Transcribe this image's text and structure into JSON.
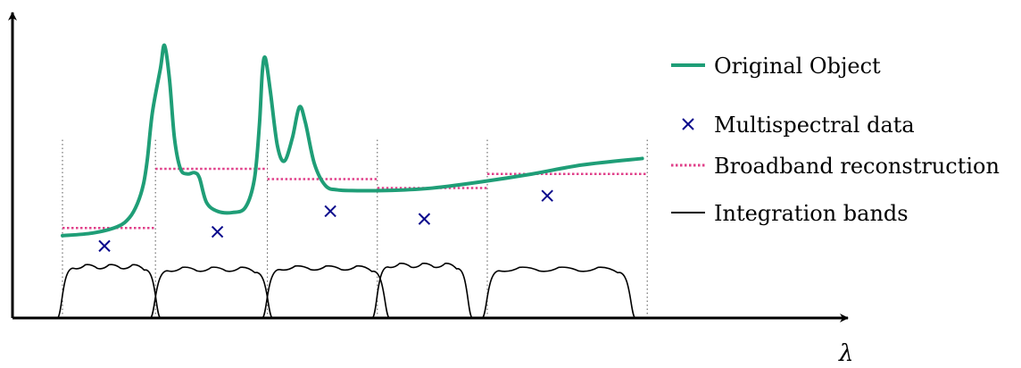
{
  "chart_data": {
    "type": "line",
    "title": "",
    "xlabel": "λ",
    "ylabel": "",
    "xlim": [
      0,
      100
    ],
    "ylim": [
      0,
      100
    ],
    "grid": false,
    "legend_position": "right",
    "colors": {
      "original": "#1f9e77",
      "data": "#0a0a8c",
      "broadband": "#e0408a",
      "bands": "#000000"
    },
    "legend": {
      "original": "Original Object",
      "data": "Multispectral data",
      "broadband": "Broadband reconstruction",
      "bands": "Integration bands"
    },
    "original_object": [
      [
        5,
        32
      ],
      [
        8,
        33
      ],
      [
        10.5,
        35.5
      ],
      [
        11.7,
        39
      ],
      [
        12.5,
        44.5
      ],
      [
        13.1,
        52
      ],
      [
        13.5,
        62
      ],
      [
        14.0,
        80
      ],
      [
        14.8,
        97
      ],
      [
        15.2,
        106
      ],
      [
        15.7,
        93
      ],
      [
        16.2,
        70
      ],
      [
        16.8,
        58
      ],
      [
        17.5,
        56
      ],
      [
        18.2,
        56.5
      ],
      [
        18.7,
        54.5
      ],
      [
        19.4,
        45
      ],
      [
        20.5,
        41.5
      ],
      [
        22.0,
        41
      ],
      [
        23.3,
        43
      ],
      [
        24.2,
        54
      ],
      [
        24.7,
        75
      ],
      [
        25.0,
        96
      ],
      [
        25.3,
        101
      ],
      [
        25.8,
        88
      ],
      [
        26.5,
        67
      ],
      [
        27.2,
        61
      ],
      [
        28.0,
        70
      ],
      [
        28.7,
        82
      ],
      [
        29.3,
        76
      ],
      [
        30.2,
        60
      ],
      [
        31.3,
        51.5
      ],
      [
        32.5,
        49.8
      ],
      [
        34.5,
        49.5
      ],
      [
        38,
        49.6
      ],
      [
        42,
        50.5
      ],
      [
        47,
        53
      ],
      [
        52,
        56
      ],
      [
        57,
        59.5
      ],
      [
        63,
        62
      ]
    ],
    "bands": [
      {
        "start": 5,
        "end": 14.3,
        "level": 35
      },
      {
        "start": 14.3,
        "end": 25.5,
        "level": 58
      },
      {
        "start": 25.5,
        "end": 36.5,
        "level": 54
      },
      {
        "start": 36.5,
        "end": 47.5,
        "level": 50.5
      },
      {
        "start": 47.5,
        "end": 63.5,
        "level": 56
      }
    ],
    "multispectral_data": [
      {
        "x": 9.2,
        "y": 28
      },
      {
        "x": 20.5,
        "y": 33.5
      },
      {
        "x": 31.8,
        "y": 41.5
      },
      {
        "x": 41.2,
        "y": 38.5
      },
      {
        "x": 53.5,
        "y": 47.5
      }
    ],
    "integration_bands": [
      {
        "start": 5,
        "end": 14.3,
        "height": 20
      },
      {
        "start": 14.3,
        "end": 25.5,
        "height": 19
      },
      {
        "start": 25.5,
        "end": 37.2,
        "height": 19.5
      },
      {
        "start": 36.5,
        "end": 45.5,
        "height": 20.5
      },
      {
        "start": 47.5,
        "end": 61.8,
        "height": 19
      }
    ]
  }
}
